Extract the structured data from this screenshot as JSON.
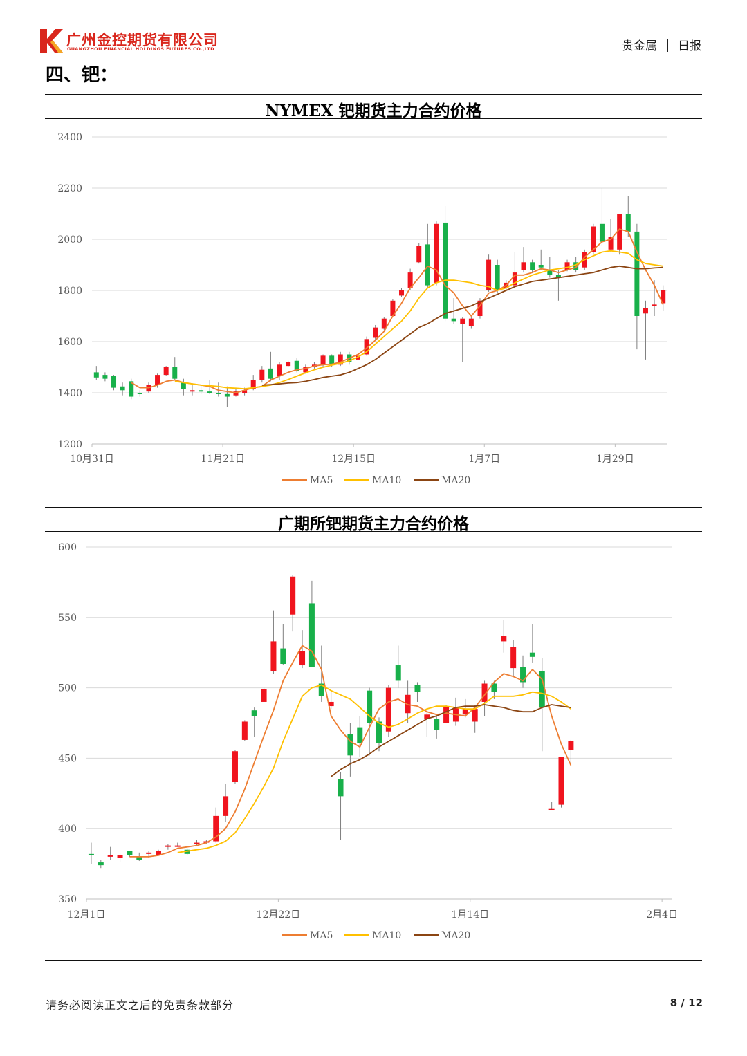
{
  "header": {
    "logo_letter": "K",
    "company_cn": "广州金控期货有限公司",
    "company_en": "GUANGZHOU FINANCIAL HOLDINGS FUTURES CO.,LTD",
    "category": "贵金属",
    "report_type": "日报",
    "brand_color": "#d9261c"
  },
  "section_title": "四、钯：",
  "colors": {
    "up": "#f0141e",
    "down": "#18b04a",
    "ma5": "#ed7d31",
    "ma10": "#ffc000",
    "ma20": "#8b4513",
    "grid": "#d9d9d9",
    "axis_text": "#595959"
  },
  "chart_data": [
    {
      "type": "candlestick",
      "title": "NYMEX 钯期货主力合约价格",
      "ylim": [
        1200,
        2400
      ],
      "yticks": [
        1200,
        1400,
        1600,
        1800,
        2000,
        2200,
        2400
      ],
      "xtick_labels": [
        {
          "index": 0,
          "label": "10月31日"
        },
        {
          "index": 15,
          "label": "11月21日"
        },
        {
          "index": 30,
          "label": "12月15日"
        },
        {
          "index": 45,
          "label": "1月7日"
        },
        {
          "index": 60,
          "label": "1月29日"
        }
      ],
      "legend": [
        "MA5",
        "MA10",
        "MA20"
      ],
      "legend_position": "bottom",
      "candles": [
        [
          1480,
          1460,
          1505,
          1450
        ],
        [
          1470,
          1455,
          1480,
          1445
        ],
        [
          1465,
          1420,
          1470,
          1410
        ],
        [
          1425,
          1410,
          1440,
          1390
        ],
        [
          1445,
          1385,
          1455,
          1375
        ],
        [
          1400,
          1395,
          1410,
          1385
        ],
        [
          1405,
          1430,
          1440,
          1400
        ],
        [
          1430,
          1470,
          1475,
          1420
        ],
        [
          1470,
          1500,
          1505,
          1465
        ],
        [
          1500,
          1455,
          1540,
          1450
        ],
        [
          1440,
          1415,
          1455,
          1390
        ],
        [
          1410,
          1410,
          1430,
          1390
        ],
        [
          1410,
          1405,
          1430,
          1395
        ],
        [
          1405,
          1400,
          1450,
          1395
        ],
        [
          1400,
          1395,
          1440,
          1385
        ],
        [
          1395,
          1385,
          1425,
          1345
        ],
        [
          1390,
          1405,
          1420,
          1385
        ],
        [
          1400,
          1410,
          1420,
          1390
        ],
        [
          1415,
          1450,
          1470,
          1410
        ],
        [
          1450,
          1490,
          1505,
          1440
        ],
        [
          1495,
          1455,
          1560,
          1445
        ],
        [
          1465,
          1510,
          1520,
          1450
        ],
        [
          1505,
          1520,
          1525,
          1500
        ],
        [
          1525,
          1485,
          1535,
          1480
        ],
        [
          1480,
          1500,
          1510,
          1475
        ],
        [
          1500,
          1510,
          1520,
          1495
        ],
        [
          1510,
          1545,
          1550,
          1500
        ],
        [
          1545,
          1510,
          1550,
          1500
        ],
        [
          1510,
          1550,
          1560,
          1505
        ],
        [
          1550,
          1520,
          1560,
          1510
        ],
        [
          1530,
          1545,
          1550,
          1520
        ],
        [
          1550,
          1610,
          1620,
          1545
        ],
        [
          1615,
          1655,
          1665,
          1605
        ],
        [
          1650,
          1690,
          1695,
          1645
        ],
        [
          1700,
          1760,
          1765,
          1695
        ],
        [
          1780,
          1800,
          1810,
          1775
        ],
        [
          1810,
          1870,
          1885,
          1800
        ],
        [
          1910,
          1975,
          1985,
          1905
        ],
        [
          1980,
          1820,
          2060,
          1810
        ],
        [
          1830,
          2060,
          2070,
          1820
        ],
        [
          2065,
          1690,
          2130,
          1680
        ],
        [
          1690,
          1680,
          1770,
          1670
        ],
        [
          1670,
          1690,
          1695,
          1520
        ],
        [
          1660,
          1690,
          1700,
          1650
        ],
        [
          1700,
          1760,
          1770,
          1690
        ],
        [
          1800,
          1920,
          1940,
          1795
        ],
        [
          1900,
          1800,
          1920,
          1790
        ],
        [
          1810,
          1830,
          1840,
          1800
        ],
        [
          1820,
          1870,
          1950,
          1810
        ],
        [
          1880,
          1910,
          1970,
          1870
        ],
        [
          1910,
          1880,
          1920,
          1870
        ],
        [
          1900,
          1890,
          1960,
          1880
        ],
        [
          1880,
          1860,
          1930,
          1850
        ],
        [
          1860,
          1850,
          1880,
          1760
        ],
        [
          1880,
          1910,
          1920,
          1875
        ],
        [
          1910,
          1880,
          1930,
          1870
        ],
        [
          1890,
          1950,
          1960,
          1880
        ],
        [
          1950,
          2050,
          2060,
          1940
        ],
        [
          2060,
          1990,
          2200,
          1975
        ],
        [
          1960,
          2010,
          2080,
          1950
        ],
        [
          1960,
          2100,
          2100,
          1940
        ],
        [
          2100,
          2030,
          2170,
          2010
        ],
        [
          2030,
          1700,
          2060,
          1570
        ],
        [
          1710,
          1730,
          1760,
          1530
        ],
        [
          1740,
          1745,
          1840,
          1700
        ],
        [
          1750,
          1800,
          1820,
          1720
        ]
      ],
      "ma5": [
        null,
        null,
        null,
        null,
        1440,
        1420,
        1420,
        1430,
        1445,
        1450,
        1440,
        1435,
        1430,
        1425,
        1410,
        1405,
        1400,
        1410,
        1420,
        1425,
        1450,
        1465,
        1480,
        1490,
        1495,
        1505,
        1510,
        1512,
        1520,
        1535,
        1550,
        1575,
        1605,
        1640,
        1700,
        1750,
        1810,
        1850,
        1895,
        1880,
        1820,
        1790,
        1740,
        1700,
        1740,
        1790,
        1800,
        1820,
        1860,
        1860,
        1870,
        1885,
        1880,
        1870,
        1880,
        1890,
        1930,
        1960,
        1990,
        2000,
        2040,
        2030,
        1950,
        1880,
        1820,
        1745
      ],
      "ma10": [
        null,
        null,
        null,
        null,
        null,
        null,
        null,
        null,
        null,
        1445,
        1440,
        1435,
        1430,
        1428,
        1425,
        1420,
        1418,
        1416,
        1420,
        1425,
        1430,
        1440,
        1452,
        1465,
        1478,
        1490,
        1500,
        1508,
        1515,
        1525,
        1540,
        1560,
        1590,
        1620,
        1650,
        1680,
        1720,
        1770,
        1810,
        1830,
        1840,
        1840,
        1835,
        1830,
        1820,
        1815,
        1800,
        1810,
        1830,
        1845,
        1860,
        1870,
        1880,
        1885,
        1890,
        1900,
        1920,
        1935,
        1950,
        1955,
        1950,
        1945,
        1920,
        1905,
        1900,
        1895
      ],
      "ma20": [
        null,
        null,
        null,
        null,
        null,
        null,
        null,
        null,
        null,
        null,
        null,
        null,
        null,
        null,
        null,
        null,
        null,
        null,
        null,
        1430,
        1432,
        1435,
        1438,
        1440,
        1445,
        1452,
        1460,
        1465,
        1470,
        1480,
        1495,
        1510,
        1530,
        1555,
        1580,
        1605,
        1630,
        1655,
        1670,
        1690,
        1710,
        1720,
        1730,
        1740,
        1755,
        1770,
        1785,
        1800,
        1815,
        1825,
        1835,
        1840,
        1845,
        1850,
        1855,
        1860,
        1865,
        1870,
        1880,
        1890,
        1895,
        1890,
        1885,
        1885,
        1888,
        1890
      ]
    },
    {
      "type": "candlestick",
      "title": "广期所钯期货主力合约价格",
      "ylim": [
        350,
        600
      ],
      "yticks": [
        350,
        400,
        450,
        500,
        550,
        600
      ],
      "xtick_labels": [
        {
          "index": 0,
          "label": "12月1日"
        },
        {
          "index": 20,
          "label": "12月22日"
        },
        {
          "index": 40,
          "label": "1月14日"
        },
        {
          "index": 60,
          "label": "2月4日"
        }
      ],
      "legend": [
        "MA5",
        "MA10",
        "MA20"
      ],
      "legend_position": "bottom",
      "candles": [
        [
          382,
          381,
          390,
          375
        ],
        [
          376,
          374,
          378,
          372
        ],
        [
          381,
          381,
          387,
          378
        ],
        [
          379,
          381,
          383,
          376
        ],
        [
          384,
          381,
          384,
          380
        ],
        [
          380,
          378,
          383,
          377
        ],
        [
          382,
          383,
          384,
          379
        ],
        [
          381,
          384,
          385,
          381
        ],
        [
          388,
          388,
          389,
          385
        ],
        [
          388,
          388,
          390,
          387
        ],
        [
          385,
          382,
          386,
          381
        ],
        [
          389,
          390,
          392,
          388
        ],
        [
          390,
          391,
          392,
          389
        ],
        [
          391,
          409,
          415,
          390
        ],
        [
          409,
          423,
          432,
          405
        ],
        [
          433,
          455,
          456,
          432
        ],
        [
          463,
          476,
          477,
          462
        ],
        [
          484,
          480,
          486,
          465
        ],
        [
          490,
          499,
          500,
          490
        ],
        [
          512,
          533,
          555,
          510
        ],
        [
          528,
          517,
          545,
          516
        ],
        [
          552,
          579,
          580,
          540
        ],
        [
          516,
          526,
          541,
          514
        ],
        [
          560,
          515,
          576,
          515
        ],
        [
          503,
          494,
          530,
          490
        ],
        [
          487,
          490,
          497,
          485
        ],
        [
          435,
          423,
          440,
          392
        ],
        [
          467,
          452,
          475,
          437
        ],
        [
          472,
          461,
          480,
          451
        ],
        [
          498,
          475,
          500,
          452
        ],
        [
          476,
          461,
          479,
          455
        ],
        [
          469,
          500,
          502,
          465
        ],
        [
          516,
          505,
          530,
          500
        ],
        [
          482,
          495,
          505,
          475
        ],
        [
          502,
          497,
          504,
          490
        ],
        [
          478,
          481,
          484,
          465
        ],
        [
          478,
          470,
          480,
          464
        ],
        [
          475,
          487,
          488,
          476
        ],
        [
          476,
          486,
          493,
          473
        ],
        [
          481,
          485,
          492,
          479
        ],
        [
          476,
          485,
          488,
          468
        ],
        [
          490,
          503,
          505,
          480
        ],
        [
          503,
          497,
          505,
          492
        ],
        [
          533,
          537,
          548,
          525
        ],
        [
          514,
          529,
          534,
          508
        ],
        [
          515,
          504,
          523,
          500
        ],
        [
          525,
          522,
          545,
          518
        ],
        [
          512,
          486,
          521,
          455
        ],
        [
          414,
          414,
          419,
          413
        ],
        [
          417,
          451,
          451,
          415
        ],
        [
          456,
          462,
          463,
          445
        ]
      ],
      "x_positions": [
        0,
        1,
        2,
        3,
        4,
        5,
        6,
        7,
        8,
        9,
        10,
        11,
        12,
        13,
        14,
        15,
        16,
        17,
        18,
        19,
        20,
        21,
        22,
        23,
        24,
        25,
        26,
        27,
        28,
        29,
        30,
        31,
        32,
        33,
        34,
        35,
        36,
        37,
        38,
        39,
        40,
        41,
        42,
        43,
        44,
        45,
        46,
        47,
        48,
        49,
        50
      ],
      "x_total": 61,
      "ma5": [
        null,
        null,
        null,
        null,
        380,
        380,
        380,
        381,
        383,
        386,
        387,
        388,
        390,
        394,
        400,
        412,
        428,
        447,
        466,
        484,
        505,
        518,
        530,
        526,
        513,
        480,
        470,
        462,
        458,
        472,
        485,
        490,
        492,
        488,
        487,
        483,
        481,
        482,
        481,
        480,
        486,
        495,
        504,
        510,
        508,
        505,
        513,
        506,
        480,
        460,
        445
      ],
      "ma10": [
        null,
        null,
        null,
        null,
        null,
        null,
        null,
        null,
        null,
        383,
        384,
        385,
        386,
        388,
        391,
        397,
        407,
        418,
        430,
        443,
        462,
        478,
        494,
        500,
        502,
        498,
        495,
        492,
        486,
        480,
        475,
        472,
        474,
        478,
        482,
        485,
        487,
        487,
        486,
        485,
        485,
        489,
        494,
        494,
        494,
        495,
        497,
        496,
        494,
        490,
        485
      ],
      "ma20": [
        null,
        null,
        null,
        null,
        null,
        null,
        null,
        null,
        null,
        null,
        null,
        null,
        null,
        null,
        null,
        null,
        null,
        null,
        null,
        null,
        null,
        null,
        null,
        null,
        null,
        437,
        442,
        446,
        449,
        453,
        458,
        462,
        466,
        470,
        474,
        478,
        480,
        483,
        486,
        487,
        487,
        488,
        487,
        486,
        484,
        483,
        483,
        486,
        488,
        487,
        486
      ]
    }
  ],
  "footer": {
    "disclaimer": "请务必阅读正文之后的免责条款部分",
    "page": "8 / 12"
  }
}
